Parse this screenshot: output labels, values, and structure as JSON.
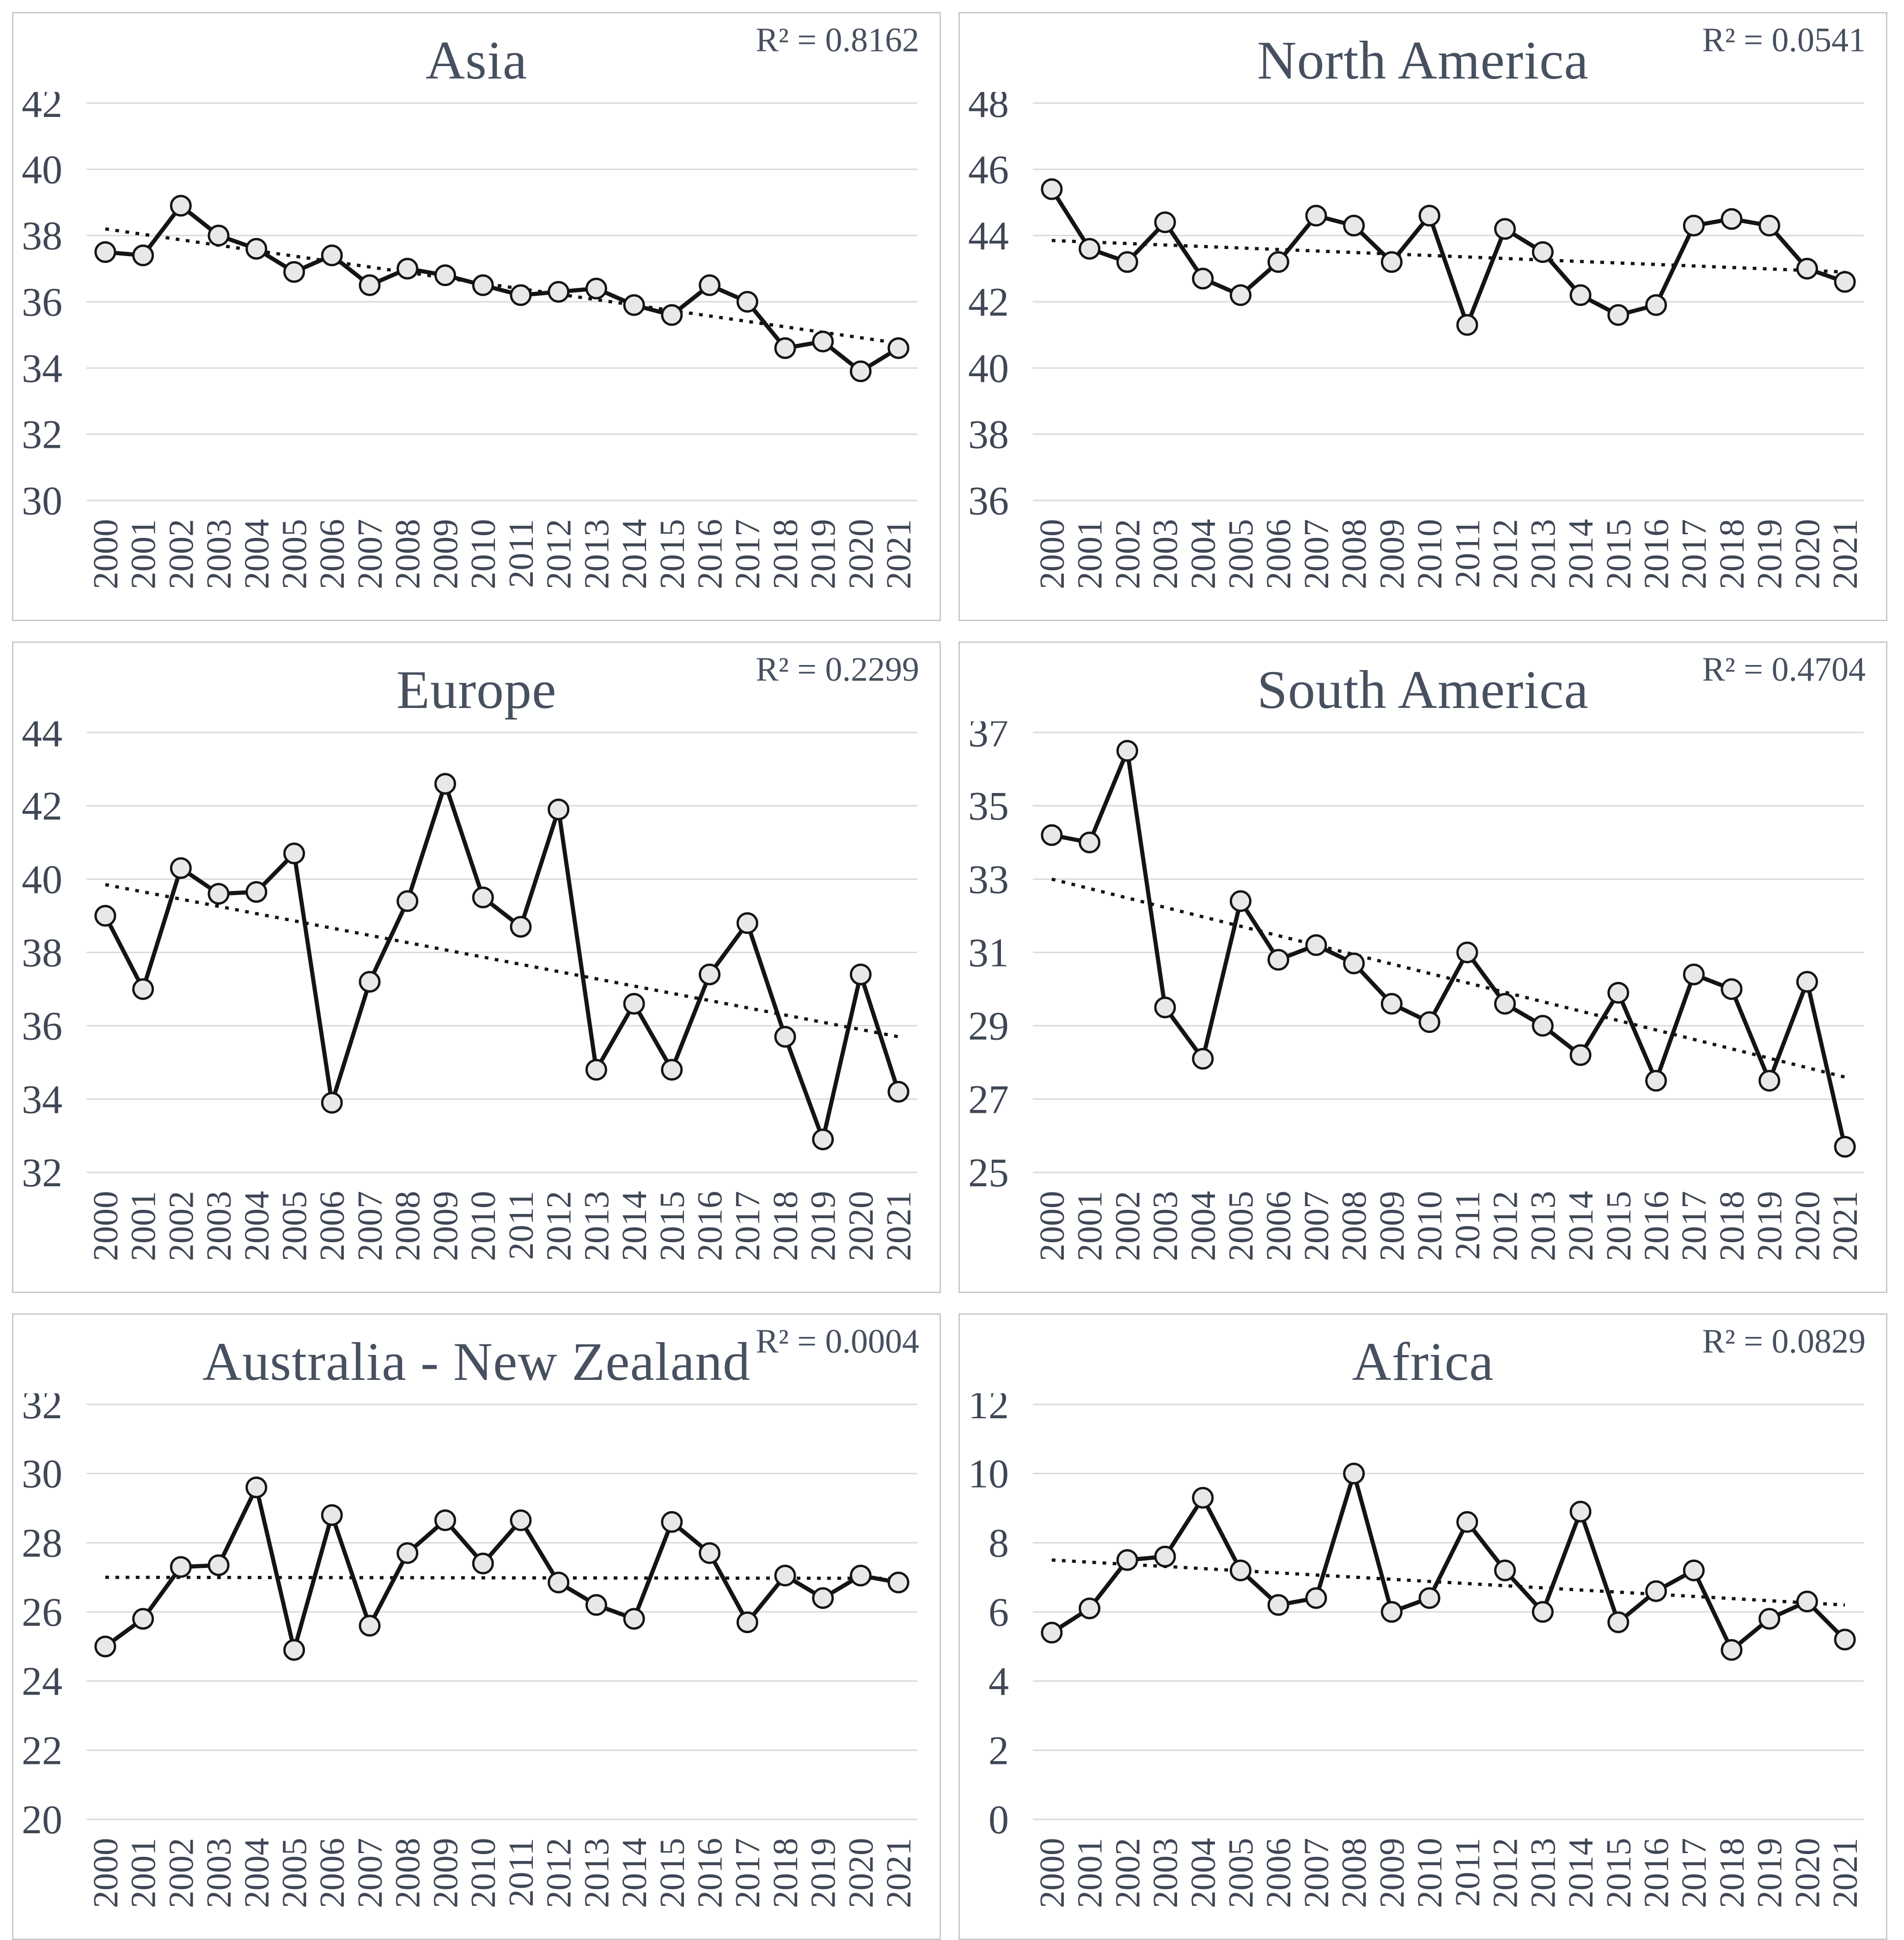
{
  "figure": {
    "description": "Six line charts with dotted linear trendlines, annual values 2000-2021",
    "colors": {
      "series_line": "#141414",
      "marker_fill": "#e8e8e8",
      "marker_stroke": "#141414",
      "trendline": "#141414",
      "gridline": "#d9d9d9",
      "text": "#475060",
      "panel_border": "#c6cacd"
    }
  },
  "chart_data": [
    {
      "type": "line",
      "title": "Asia",
      "r2": "R² = 0.8162",
      "x": [
        "2000",
        "2001",
        "2002",
        "2003",
        "2004",
        "2005",
        "2006",
        "2007",
        "2008",
        "2009",
        "2010",
        "2011",
        "2012",
        "2013",
        "2014",
        "2015",
        "2016",
        "2017",
        "2018",
        "2019",
        "2020",
        "2021"
      ],
      "series": [
        {
          "name": "Asia",
          "values": [
            37.5,
            37.4,
            38.9,
            38.0,
            37.6,
            36.9,
            37.4,
            36.5,
            37.0,
            36.8,
            36.5,
            36.2,
            36.3,
            36.4,
            35.9,
            35.6,
            36.5,
            36.0,
            34.6,
            34.8,
            33.9,
            34.6
          ]
        }
      ],
      "trendline": {
        "style": "dotted",
        "start": 38.2,
        "end": 34.75
      },
      "ylim": [
        30,
        42
      ],
      "ytick_step": 2,
      "grid": true,
      "legend": "none"
    },
    {
      "type": "line",
      "title": "North America",
      "r2": "R² = 0.0541",
      "x": [
        "2000",
        "2001",
        "2002",
        "2003",
        "2004",
        "2005",
        "2006",
        "2007",
        "2008",
        "2009",
        "2010",
        "2011",
        "2012",
        "2013",
        "2014",
        "2015",
        "2016",
        "2017",
        "2018",
        "2019",
        "2020",
        "2021"
      ],
      "series": [
        {
          "name": "North America",
          "values": [
            45.4,
            43.6,
            43.2,
            44.4,
            42.7,
            42.2,
            43.2,
            44.6,
            44.3,
            43.2,
            44.6,
            41.3,
            44.2,
            43.5,
            42.2,
            41.6,
            41.9,
            44.3,
            44.5,
            44.3,
            43.0,
            42.6
          ]
        }
      ],
      "trendline": {
        "style": "dotted",
        "start": 43.85,
        "end": 42.9
      },
      "ylim": [
        36,
        48
      ],
      "ytick_step": 2,
      "grid": true,
      "legend": "none"
    },
    {
      "type": "line",
      "title": "Europe",
      "r2": "R² = 0.2299",
      "x": [
        "2000",
        "2001",
        "2002",
        "2003",
        "2004",
        "2005",
        "2006",
        "2007",
        "2008",
        "2009",
        "2010",
        "2011",
        "2012",
        "2013",
        "2014",
        "2015",
        "2016",
        "2017",
        "2018",
        "2019",
        "2020",
        "2021"
      ],
      "series": [
        {
          "name": "Europe",
          "values": [
            39.0,
            37.0,
            40.3,
            39.6,
            39.65,
            40.7,
            33.9,
            37.2,
            39.4,
            42.6,
            39.5,
            38.7,
            41.9,
            34.8,
            36.6,
            34.8,
            37.4,
            38.8,
            35.7,
            32.9,
            37.4,
            34.2
          ]
        }
      ],
      "trendline": {
        "style": "dotted",
        "start": 39.85,
        "end": 35.7
      },
      "ylim": [
        32,
        44
      ],
      "ytick_step": 2,
      "grid": true,
      "legend": "none"
    },
    {
      "type": "line",
      "title": "South America",
      "r2": "R² = 0.4704",
      "x": [
        "2000",
        "2001",
        "2002",
        "2003",
        "2004",
        "2005",
        "2006",
        "2007",
        "2008",
        "2009",
        "2010",
        "2011",
        "2012",
        "2013",
        "2014",
        "2015",
        "2016",
        "2017",
        "2018",
        "2019",
        "2020",
        "2021"
      ],
      "series": [
        {
          "name": "South America",
          "values": [
            34.2,
            34.0,
            36.5,
            29.5,
            28.1,
            32.4,
            30.8,
            31.2,
            30.7,
            29.6,
            29.1,
            31.0,
            29.6,
            29.0,
            28.2,
            29.9,
            27.5,
            30.4,
            30.0,
            27.5,
            30.2,
            25.7
          ]
        }
      ],
      "trendline": {
        "style": "dotted",
        "start": 33.0,
        "end": 27.6
      },
      "ylim": [
        25,
        37
      ],
      "ytick_step": 2,
      "grid": true,
      "legend": "none"
    },
    {
      "type": "line",
      "title": "Australia - New Zealand",
      "r2": "R² = 0.0004",
      "x": [
        "2000",
        "2001",
        "2002",
        "2003",
        "2004",
        "2005",
        "2006",
        "2007",
        "2008",
        "2009",
        "2010",
        "2011",
        "2012",
        "2013",
        "2014",
        "2015",
        "2016",
        "2017",
        "2018",
        "2019",
        "2020",
        "2021"
      ],
      "series": [
        {
          "name": "Australia - New Zealand",
          "values": [
            25.0,
            25.8,
            27.3,
            27.35,
            29.6,
            24.9,
            28.8,
            25.6,
            27.7,
            28.65,
            27.4,
            28.65,
            26.85,
            26.2,
            25.8,
            28.6,
            27.7,
            25.7,
            27.05,
            26.4,
            27.05,
            26.85
          ]
        }
      ],
      "trendline": {
        "style": "dotted",
        "start": 27.0,
        "end": 26.97
      },
      "ylim": [
        20,
        32
      ],
      "ytick_step": 2,
      "grid": true,
      "legend": "none"
    },
    {
      "type": "line",
      "title": "Africa",
      "r2": "R² = 0.0829",
      "x": [
        "2000",
        "2001",
        "2002",
        "2003",
        "2004",
        "2005",
        "2006",
        "2007",
        "2008",
        "2009",
        "2010",
        "2011",
        "2012",
        "2013",
        "2014",
        "2015",
        "2016",
        "2017",
        "2018",
        "2019",
        "2020",
        "2021"
      ],
      "series": [
        {
          "name": "Africa",
          "values": [
            5.4,
            6.1,
            7.5,
            7.6,
            9.3,
            7.2,
            6.2,
            6.4,
            10.0,
            6.0,
            6.4,
            8.6,
            7.2,
            6.0,
            8.9,
            5.7,
            6.6,
            7.2,
            4.9,
            5.8,
            6.3,
            5.2
          ]
        }
      ],
      "trendline": {
        "style": "dotted",
        "start": 7.5,
        "end": 6.2
      },
      "ylim": [
        0,
        12
      ],
      "ytick_step": 2,
      "grid": true,
      "legend": "none"
    }
  ]
}
